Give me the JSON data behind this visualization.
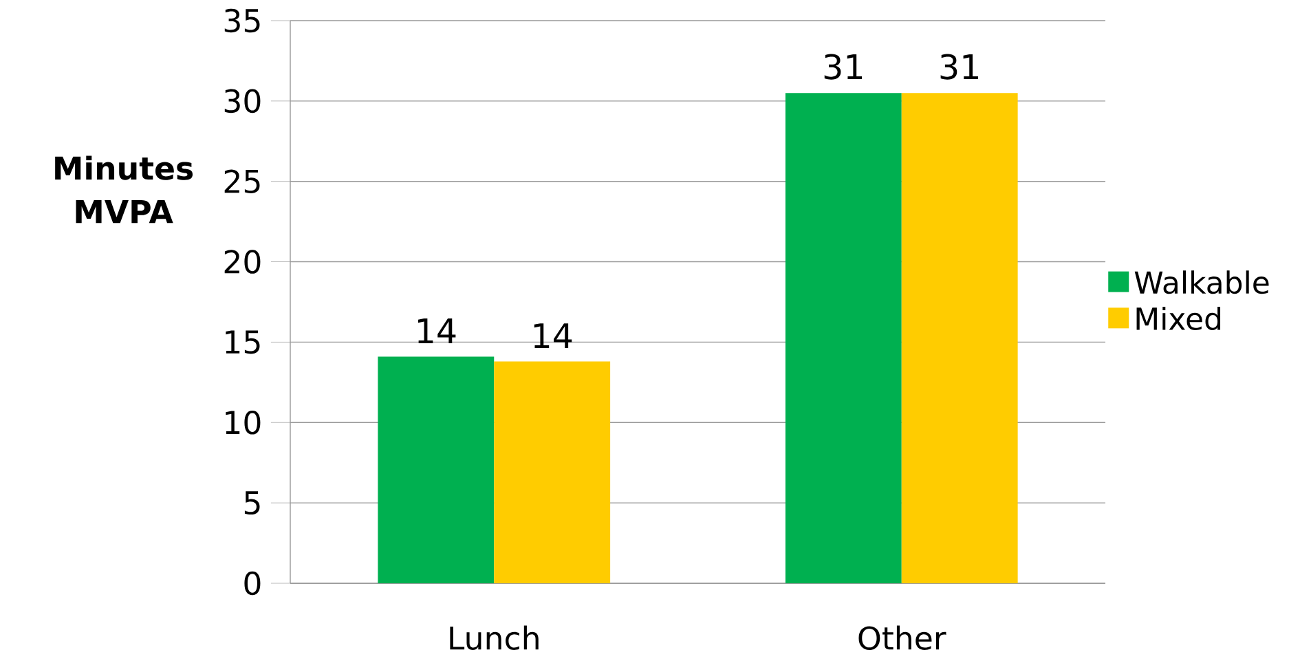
{
  "chart_data": {
    "type": "bar",
    "ylabel": "Minutes MVPA",
    "categories": [
      "Lunch",
      "Other"
    ],
    "series": [
      {
        "name": "Walkable",
        "color": "#00b050",
        "values": [
          14.1,
          30.5
        ],
        "value_labels": [
          "14",
          "31"
        ]
      },
      {
        "name": "Mixed",
        "color": "#ffcc00",
        "values": [
          13.8,
          30.5
        ],
        "value_labels": [
          "14",
          "31"
        ]
      }
    ],
    "ylim": [
      0,
      35
    ],
    "yticks": [
      0,
      5,
      10,
      15,
      20,
      25,
      30,
      35
    ],
    "grid": "y",
    "legend": "right"
  }
}
